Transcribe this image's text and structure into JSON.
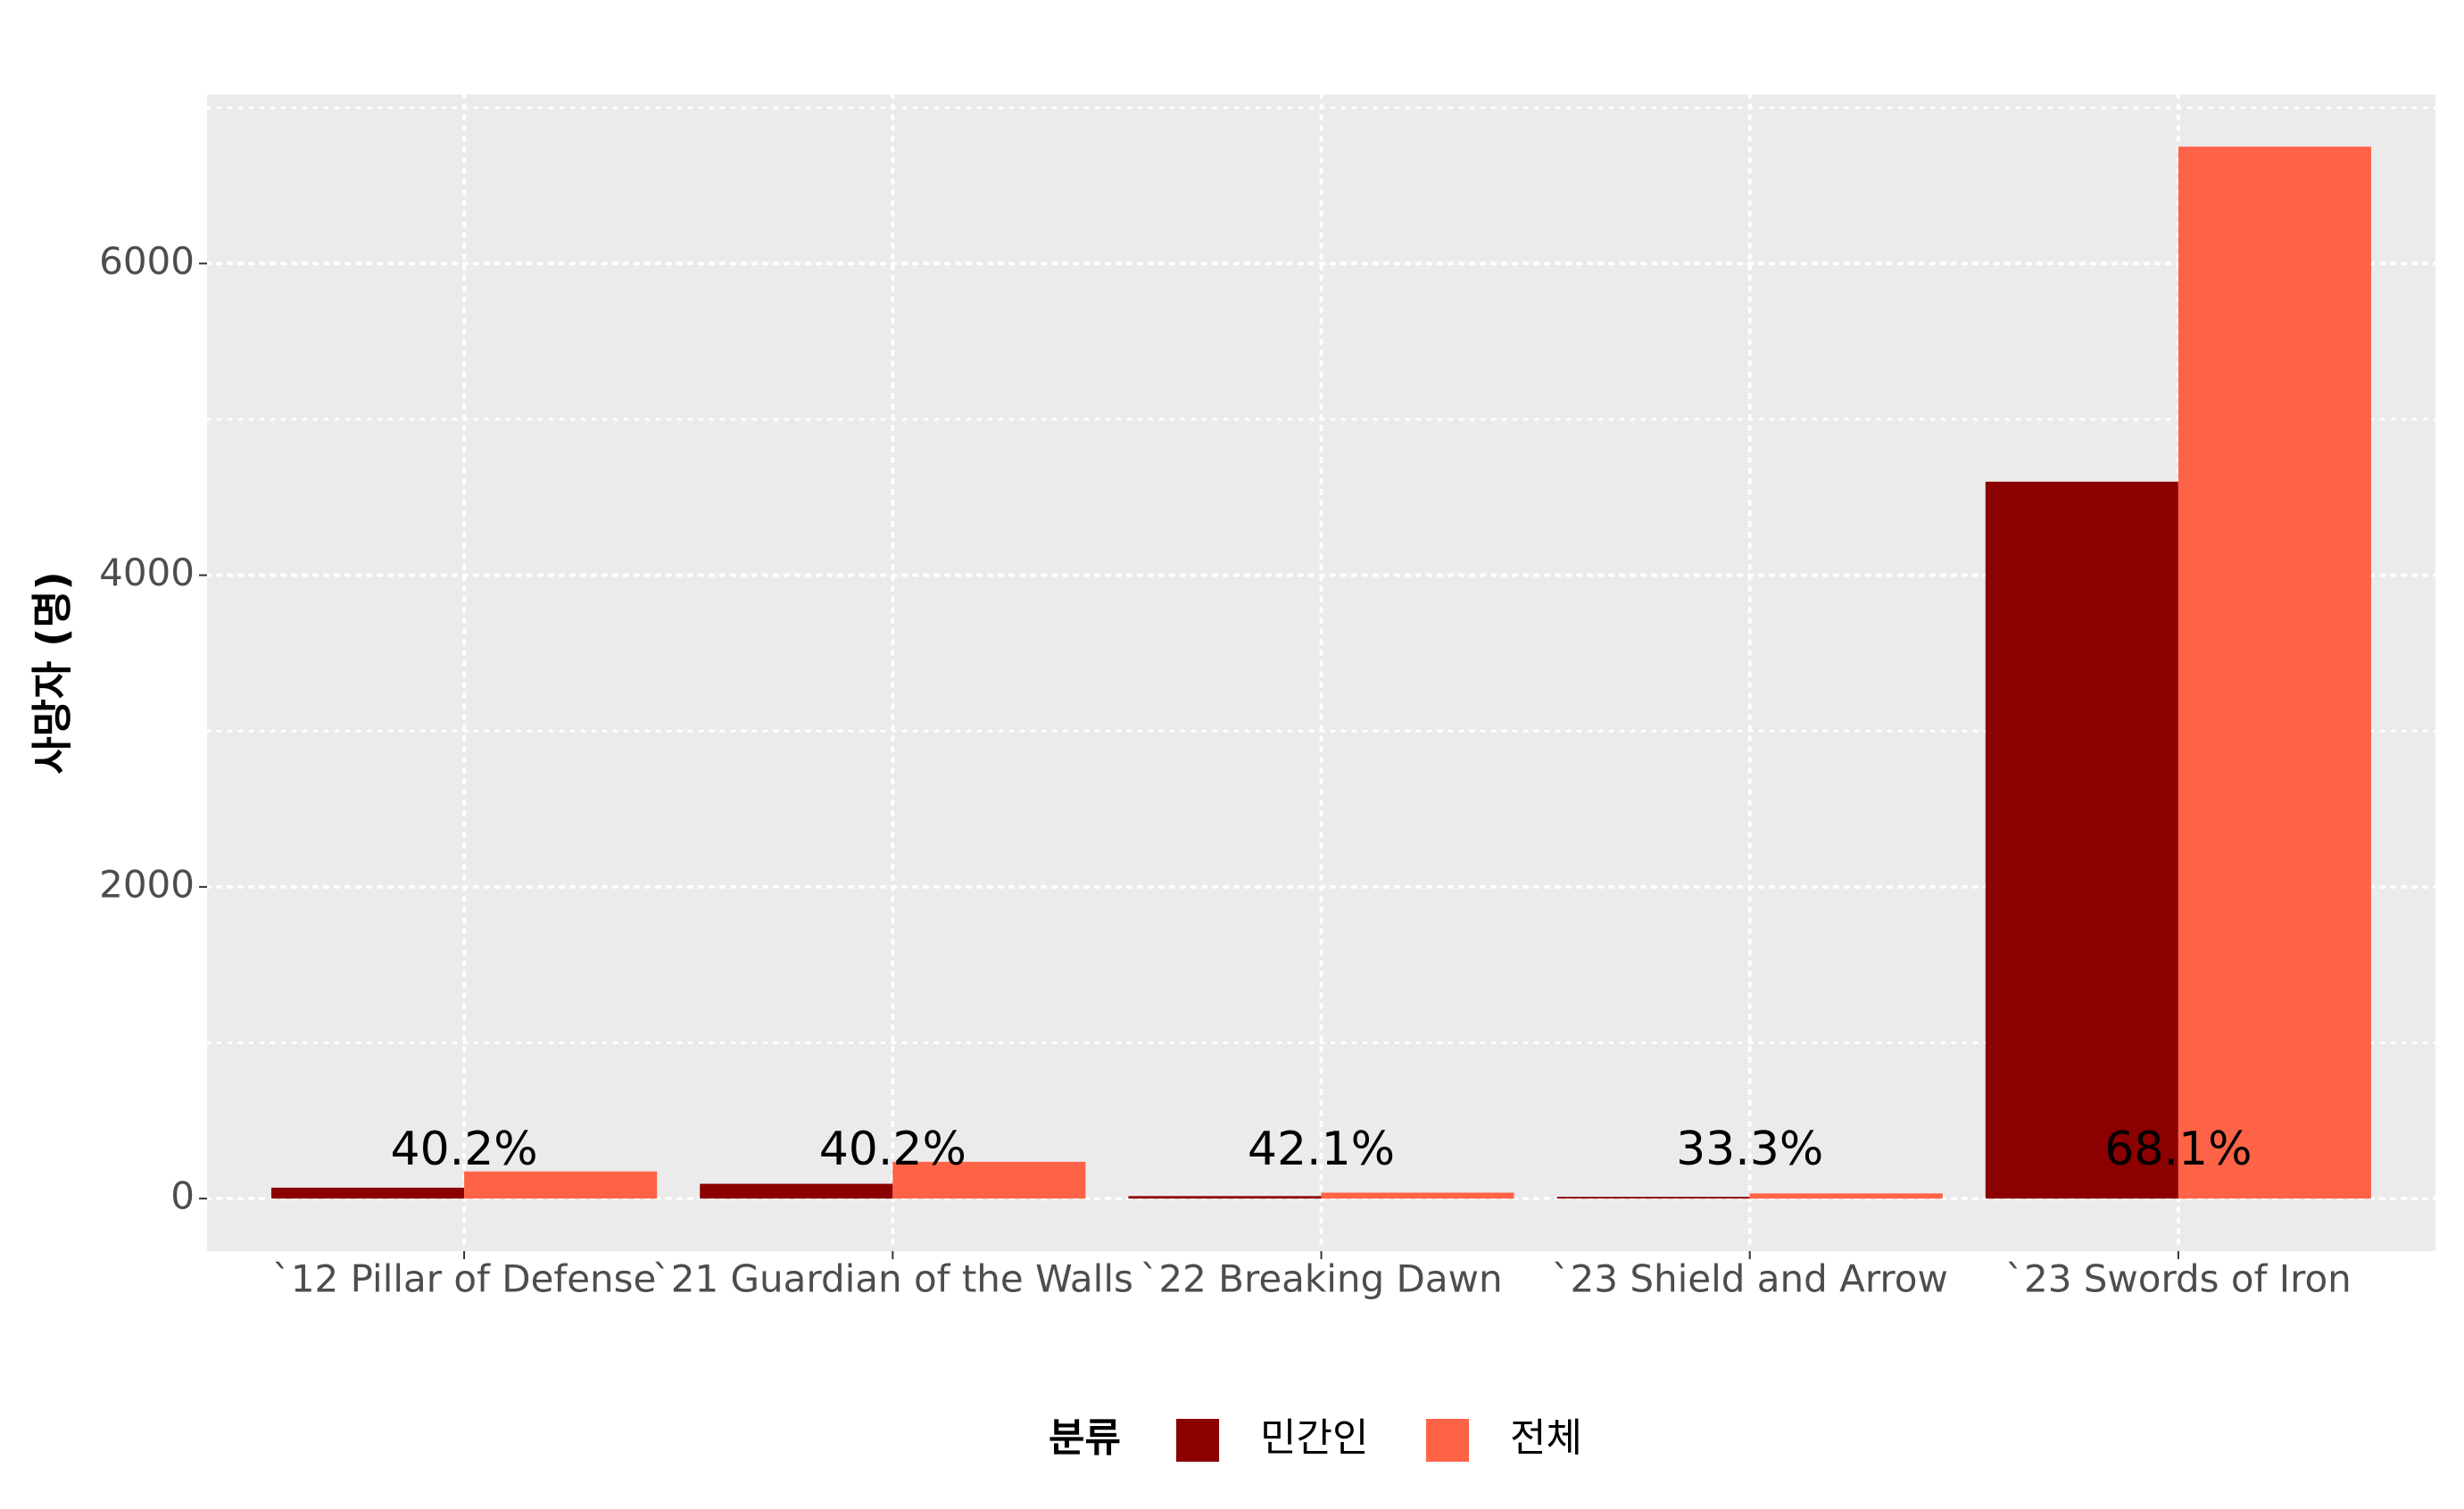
{
  "chart_data": {
    "type": "bar",
    "y_label": "사망자 (명)",
    "legend_title": "분류",
    "categories": [
      "`12 Pillar of Defense",
      "`21 Guardian of the Walls",
      "`22 Breaking Dawn",
      "`23 Shield and Arrow",
      "`23 Swords of Iron"
    ],
    "series": [
      {
        "name": "민간인",
        "color": "#8b0000",
        "values": [
          70,
          95,
          16,
          11,
          4600
        ]
      },
      {
        "name": "전체",
        "color": "#ff6347",
        "values": [
          174,
          236,
          38,
          33,
          6750
        ]
      }
    ],
    "annotations": [
      "40.2%",
      "40.2%",
      "42.1%",
      "33.3%",
      "68.1%"
    ],
    "ylim": [
      -337,
      7084
    ],
    "yticks": [
      0,
      2000,
      4000,
      6000
    ],
    "minor_yticks": [
      1000,
      3000,
      5000,
      7000
    ],
    "grid": true,
    "legend_position": "bottom"
  }
}
